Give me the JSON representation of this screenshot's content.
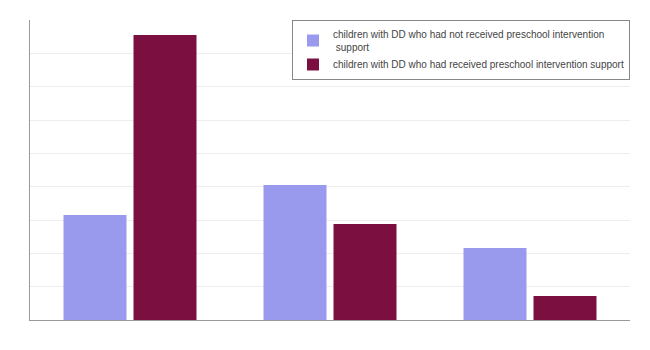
{
  "chart_data": {
    "type": "bar",
    "categories": [
      null,
      null,
      null
    ],
    "series": [
      {
        "name": "children with DD who had not received preschool intervention\n support",
        "color": "#9999EE",
        "values": [
          35,
          45,
          24
        ]
      },
      {
        "name": "children with DD who had received preschool intervention support",
        "color": "#7B1040",
        "values": [
          95,
          32,
          8
        ]
      }
    ],
    "ylim": [
      0,
      100
    ],
    "yticks": [
      0,
      11.11111111111111,
      22.22222222222222,
      33.333333333333336,
      44.44444444444444,
      55.55555555555556,
      66.66666666666667,
      77.77777777777777,
      88.88888888888889,
      100
    ],
    "grid": true,
    "legend": "upper right",
    "tick_labels": false
  }
}
